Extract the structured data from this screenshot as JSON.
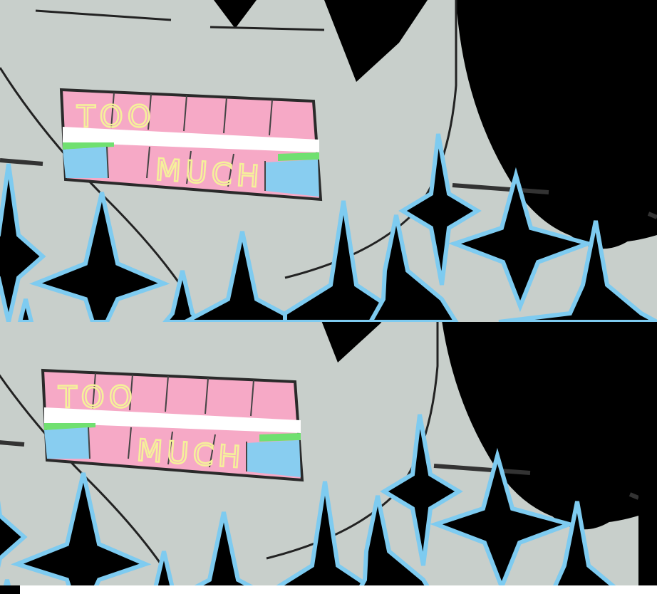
{
  "panels": [
    {
      "id": "top",
      "sign": {
        "line1": "TOO",
        "line2": "MUCH"
      }
    },
    {
      "id": "bottom",
      "sign": {
        "line1": "TOO",
        "line2": "MUCH"
      }
    }
  ],
  "colors": {
    "background": "#000000",
    "skin": "#c8cfcb",
    "outline": "#222222",
    "star_outline": "#7ecbf0",
    "sign_pink": "#f6a9c6",
    "sign_blue": "#88cdf0",
    "sign_green": "#70e070",
    "letters": "#f5f19a"
  }
}
